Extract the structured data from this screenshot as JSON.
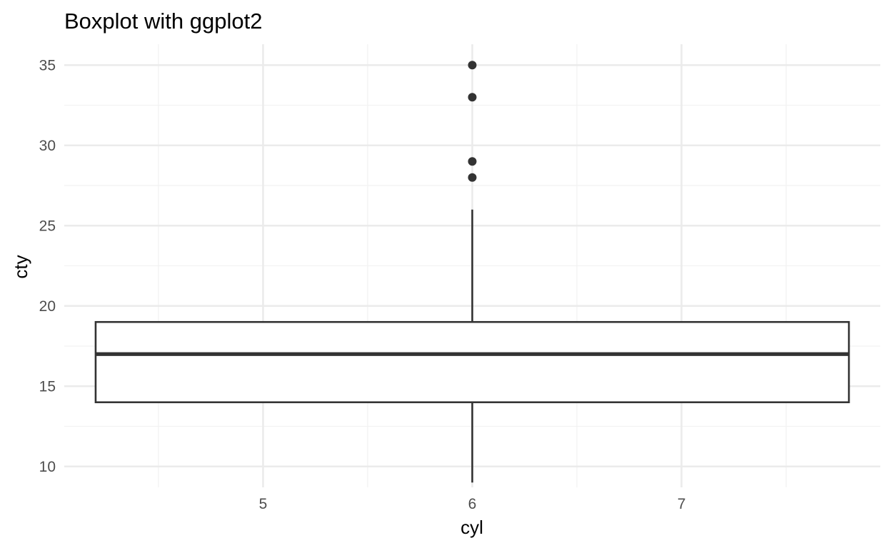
{
  "chart_data": {
    "type": "boxplot",
    "title": "Boxplot with ggplot2",
    "xlabel": "cyl",
    "ylabel": "cty",
    "xlim": [
      4.05,
      7.95
    ],
    "ylim": [
      8.7,
      36.3
    ],
    "x_ticks": [
      5,
      6,
      7
    ],
    "x_minor_ticks": [
      4.5,
      5.5,
      6.5,
      7.5
    ],
    "y_ticks": [
      10,
      15,
      20,
      25,
      30,
      35
    ],
    "y_minor_ticks": [
      12.5,
      17.5,
      22.5,
      27.5,
      32.5
    ],
    "grid": true,
    "legend": "none",
    "box": {
      "x_center": 6,
      "x_left": 4.2,
      "x_right": 7.8,
      "lower_whisker": 9,
      "q1": 14,
      "median": 17,
      "q3": 19,
      "upper_whisker": 26
    },
    "outliers": [
      {
        "x": 6,
        "y": 28
      },
      {
        "x": 6,
        "y": 29
      },
      {
        "x": 6,
        "y": 33
      },
      {
        "x": 6,
        "y": 35
      }
    ]
  },
  "colors": {
    "background": "#ffffff",
    "grid_major": "#ebebeb",
    "grid_minor": "#f2f2f2",
    "box_stroke": "#333333",
    "box_fill": "#ffffff",
    "point": "#333333",
    "tick_text": "#4d4d4d"
  }
}
